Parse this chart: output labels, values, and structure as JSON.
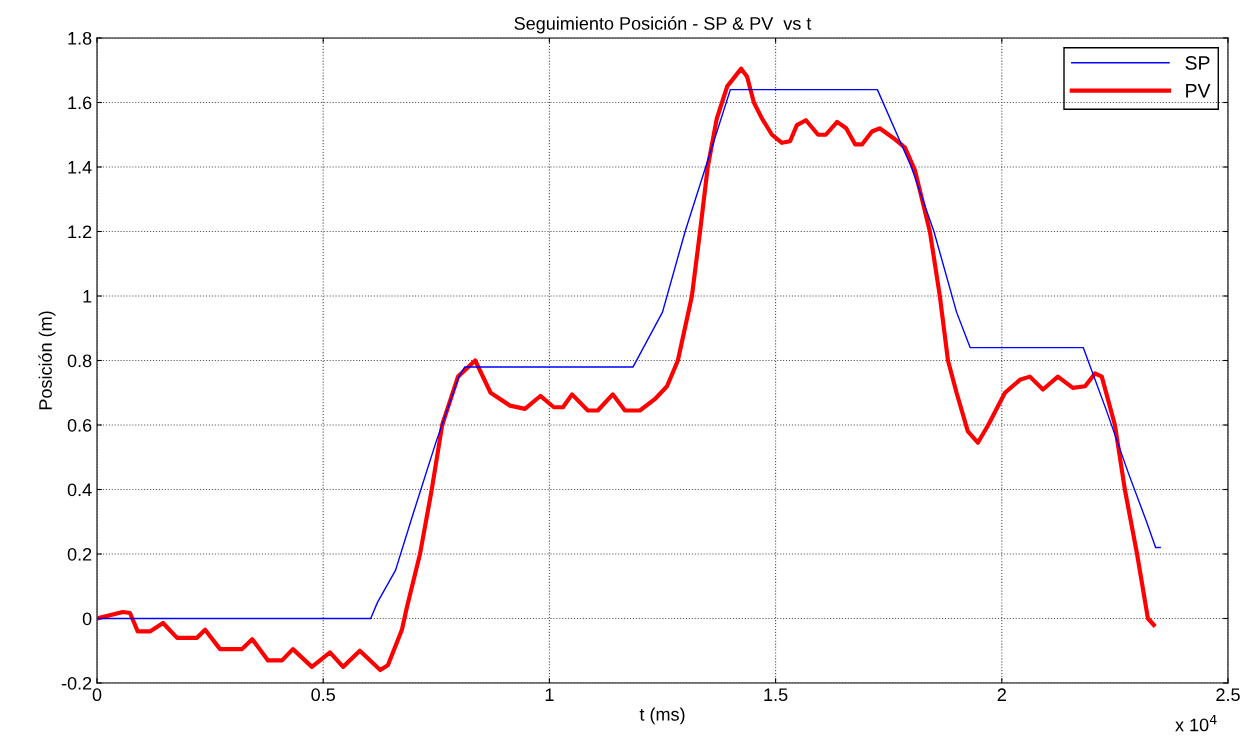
{
  "chart_data": {
    "type": "line",
    "title": "Seguimiento Posición - SP & PV  vs t",
    "xlabel": "t (ms)",
    "ylabel": "Posición (m)",
    "annotations": [
      "x 10$^{4}$"
    ],
    "xlim": [
      0,
      2.5
    ],
    "xticks": [
      0,
      0.5,
      1,
      1.5,
      2,
      2.5
    ],
    "ylim": [
      -0.2,
      1.8
    ],
    "yticks": [
      -0.2,
      0,
      0.2,
      0.4,
      0.6,
      0.8,
      1,
      1.2,
      1.4,
      1.6,
      1.8
    ],
    "grid": true,
    "legend": "top right",
    "line_style": "solid",
    "marker": "none",
    "series": [
      {
        "name": "SP",
        "color": "#0000ff",
        "x": [
          0,
          0.605,
          0.62,
          0.66,
          0.7,
          0.75,
          0.8,
          0.813,
          1.185,
          1.25,
          1.3,
          1.35,
          1.4,
          1.725,
          1.8,
          1.85,
          1.9,
          1.93,
          2.18,
          2.23,
          2.28,
          2.32,
          2.34,
          2.35
        ],
        "values": [
          0,
          0,
          0.05,
          0.15,
          0.33,
          0.55,
          0.75,
          0.78,
          0.78,
          0.95,
          1.2,
          1.42,
          1.64,
          1.64,
          1.4,
          1.2,
          0.95,
          0.84,
          0.84,
          0.65,
          0.45,
          0.3,
          0.22,
          0.22
        ]
      },
      {
        "name": "PV",
        "color": "#ff0000",
        "x": [
          0,
          0.057,
          0.073,
          0.09,
          0.117,
          0.146,
          0.177,
          0.221,
          0.239,
          0.272,
          0.32,
          0.343,
          0.378,
          0.409,
          0.433,
          0.475,
          0.493,
          0.515,
          0.544,
          0.581,
          0.626,
          0.643,
          0.674,
          0.685,
          0.714,
          0.74,
          0.763,
          0.798,
          0.836,
          0.87,
          0.913,
          0.946,
          0.98,
          1.01,
          1.03,
          1.05,
          1.085,
          1.107,
          1.14,
          1.167,
          1.2,
          1.233,
          1.26,
          1.284,
          1.315,
          1.333,
          1.35,
          1.37,
          1.393,
          1.424,
          1.437,
          1.452,
          1.47,
          1.492,
          1.514,
          1.532,
          1.547,
          1.567,
          1.594,
          1.611,
          1.636,
          1.656,
          1.676,
          1.691,
          1.713,
          1.73,
          1.76,
          1.786,
          1.808,
          1.841,
          1.863,
          1.881,
          1.9,
          1.925,
          1.947,
          1.97,
          2.007,
          2.04,
          2.062,
          2.091,
          2.124,
          2.157,
          2.184,
          2.206,
          2.221,
          2.25,
          2.272,
          2.299,
          2.323,
          2.336
        ],
        "values": [
          0,
          0.02,
          0.017,
          -0.04,
          -0.04,
          -0.014,
          -0.06,
          -0.06,
          -0.035,
          -0.095,
          -0.095,
          -0.064,
          -0.13,
          -0.13,
          -0.095,
          -0.15,
          -0.13,
          -0.105,
          -0.15,
          -0.1,
          -0.16,
          -0.145,
          -0.035,
          0.035,
          0.2,
          0.4,
          0.6,
          0.75,
          0.8,
          0.7,
          0.66,
          0.65,
          0.69,
          0.655,
          0.655,
          0.695,
          0.645,
          0.645,
          0.695,
          0.645,
          0.645,
          0.68,
          0.72,
          0.8,
          1.0,
          1.2,
          1.4,
          1.55,
          1.65,
          1.705,
          1.68,
          1.6,
          1.55,
          1.5,
          1.475,
          1.48,
          1.53,
          1.545,
          1.5,
          1.5,
          1.54,
          1.52,
          1.47,
          1.47,
          1.51,
          1.52,
          1.49,
          1.46,
          1.39,
          1.2,
          1.0,
          0.8,
          0.7,
          0.58,
          0.545,
          0.6,
          0.7,
          0.74,
          0.75,
          0.71,
          0.75,
          0.715,
          0.72,
          0.76,
          0.75,
          0.6,
          0.4,
          0.2,
          0.0,
          -0.02
        ]
      }
    ]
  }
}
